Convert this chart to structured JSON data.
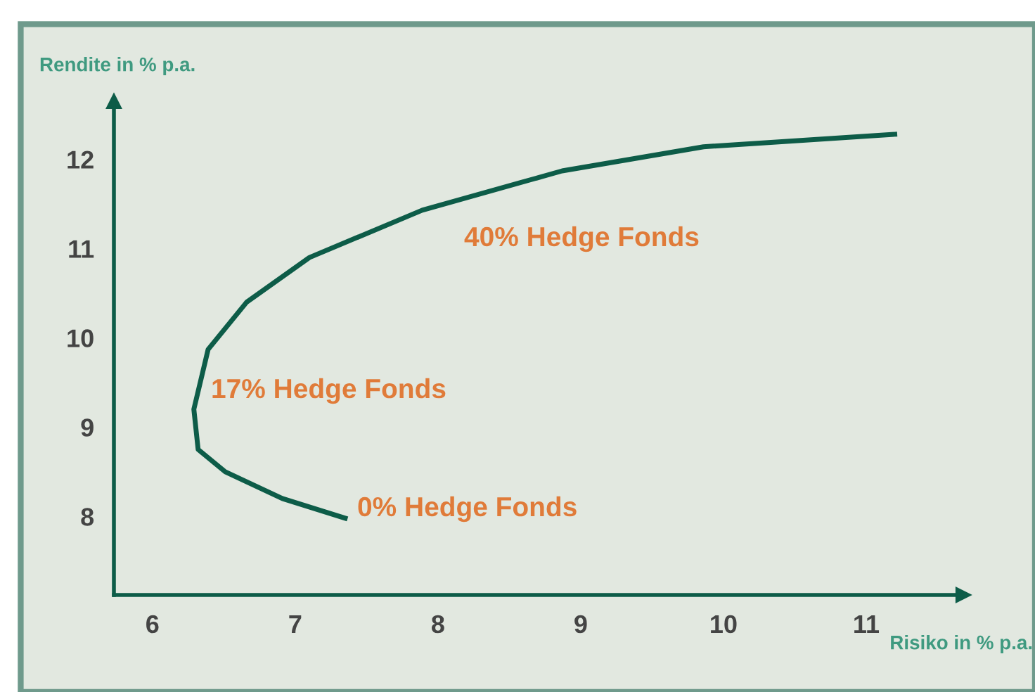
{
  "chart_data": {
    "type": "line",
    "xlabel": "Risiko in % p.a.",
    "ylabel": "Rendite in % p.a.",
    "series": [
      {
        "color": "#0d5c48",
        "x": [
          7.35,
          6.91,
          6.51,
          6.32,
          6.29,
          6.39,
          6.66,
          7.1,
          7.89,
          8.87,
          9.86,
          11.2
        ],
        "values": [
          7.98,
          8.2,
          8.5,
          8.75,
          9.2,
          9.87,
          10.4,
          10.9,
          11.43,
          11.87,
          12.14,
          12.28
        ]
      }
    ],
    "xlim": [
      5.73,
      11.68
    ],
    "ylim": [
      7.12,
      12.65
    ],
    "xticks": [
      6,
      7,
      8,
      9,
      10,
      11
    ],
    "yticks": [
      8,
      9,
      10,
      11,
      12
    ],
    "annotations": [
      "40% Hedge Fonds",
      "17% Hedge Fonds",
      "0% Hedge Fonds"
    ],
    "grid": false,
    "marker": "none",
    "line_style": "solid",
    "legend": false
  }
}
